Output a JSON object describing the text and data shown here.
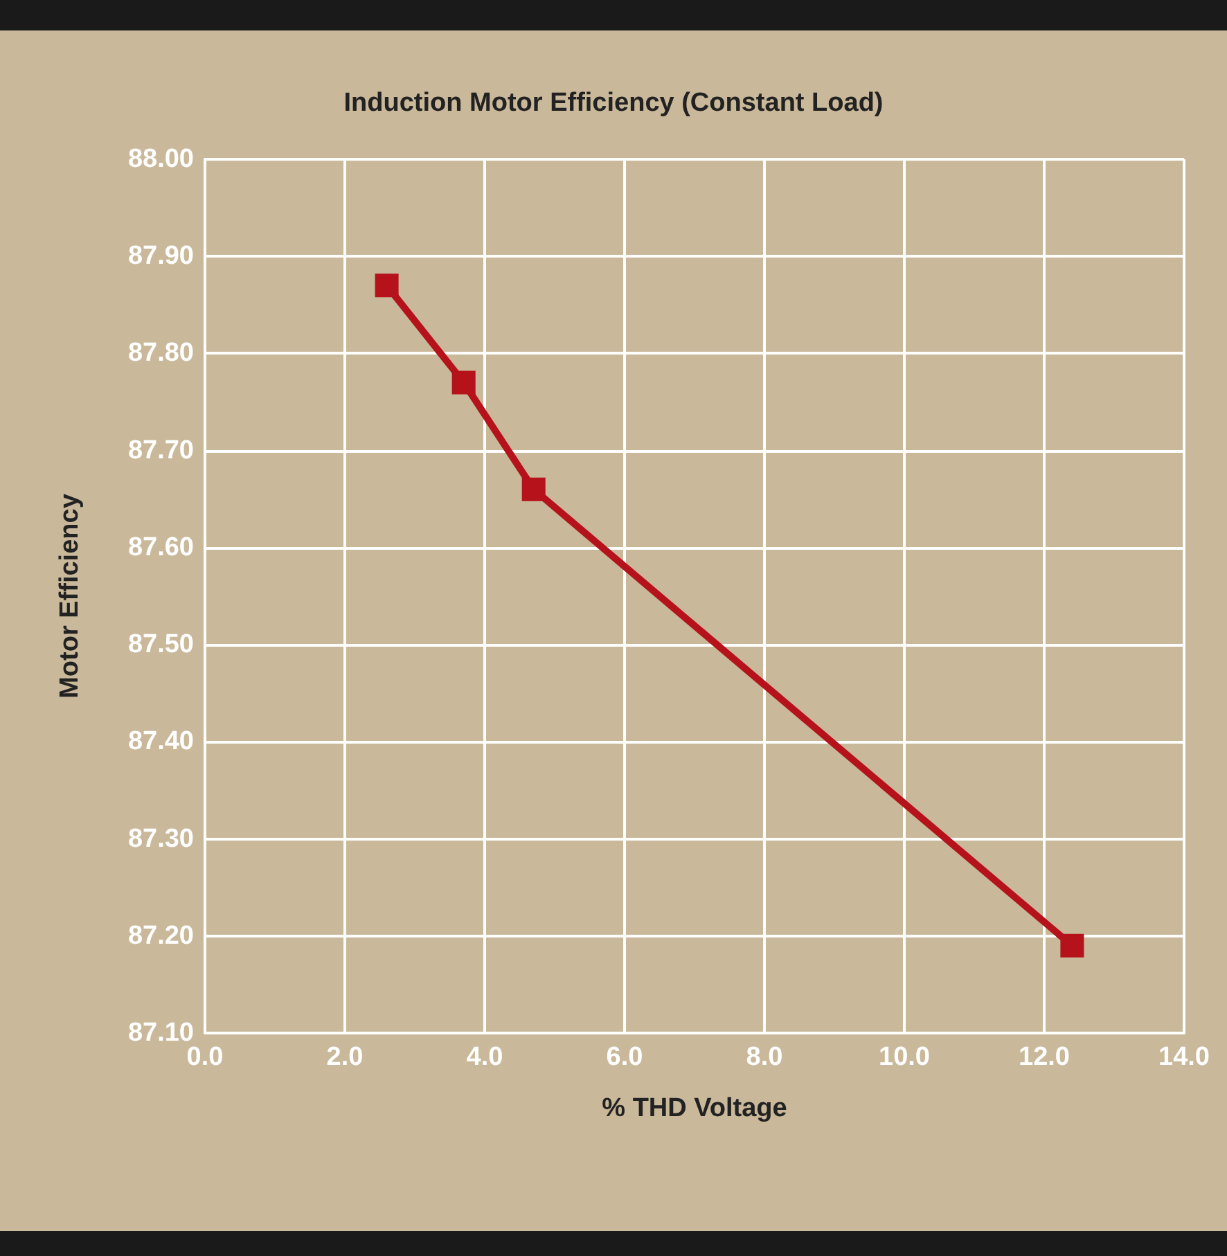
{
  "chart_data": {
    "type": "line",
    "title": "Induction Motor Efficiency (Constant Load)",
    "xlabel": "% THD Voltage",
    "ylabel": "Motor Efficiency",
    "x": [
      2.6,
      3.7,
      4.7,
      12.4
    ],
    "series": [
      {
        "color": "#b5121b",
        "values": [
          87.87,
          87.77,
          87.66,
          87.19
        ]
      }
    ],
    "xlim": [
      0,
      14
    ],
    "ylim": [
      87.1,
      88
    ],
    "xticks": [
      {
        "value": 0,
        "label": "0.0"
      },
      {
        "value": 2,
        "label": "2.0"
      },
      {
        "value": 4,
        "label": "4.0"
      },
      {
        "value": 6,
        "label": "6.0"
      },
      {
        "value": 8,
        "label": "8.0"
      },
      {
        "value": 10,
        "label": "10.0"
      },
      {
        "value": 12,
        "label": "12.0"
      },
      {
        "value": 14,
        "label": "14.0"
      }
    ],
    "yticks": [
      {
        "value": 87.1,
        "label": "87.10"
      },
      {
        "value": 87.2,
        "label": "87.20"
      },
      {
        "value": 87.3,
        "label": "87.30"
      },
      {
        "value": 87.4,
        "label": "87.40"
      },
      {
        "value": 87.5,
        "label": "87.50"
      },
      {
        "value": 87.6,
        "label": "87.60"
      },
      {
        "value": 87.7,
        "label": "87.70"
      },
      {
        "value": 87.8,
        "label": "87.80"
      },
      {
        "value": 87.9,
        "label": "87.90"
      },
      {
        "value": 88,
        "label": "88.00"
      }
    ],
    "grid": true,
    "marker": "square",
    "line_style": "solid"
  }
}
